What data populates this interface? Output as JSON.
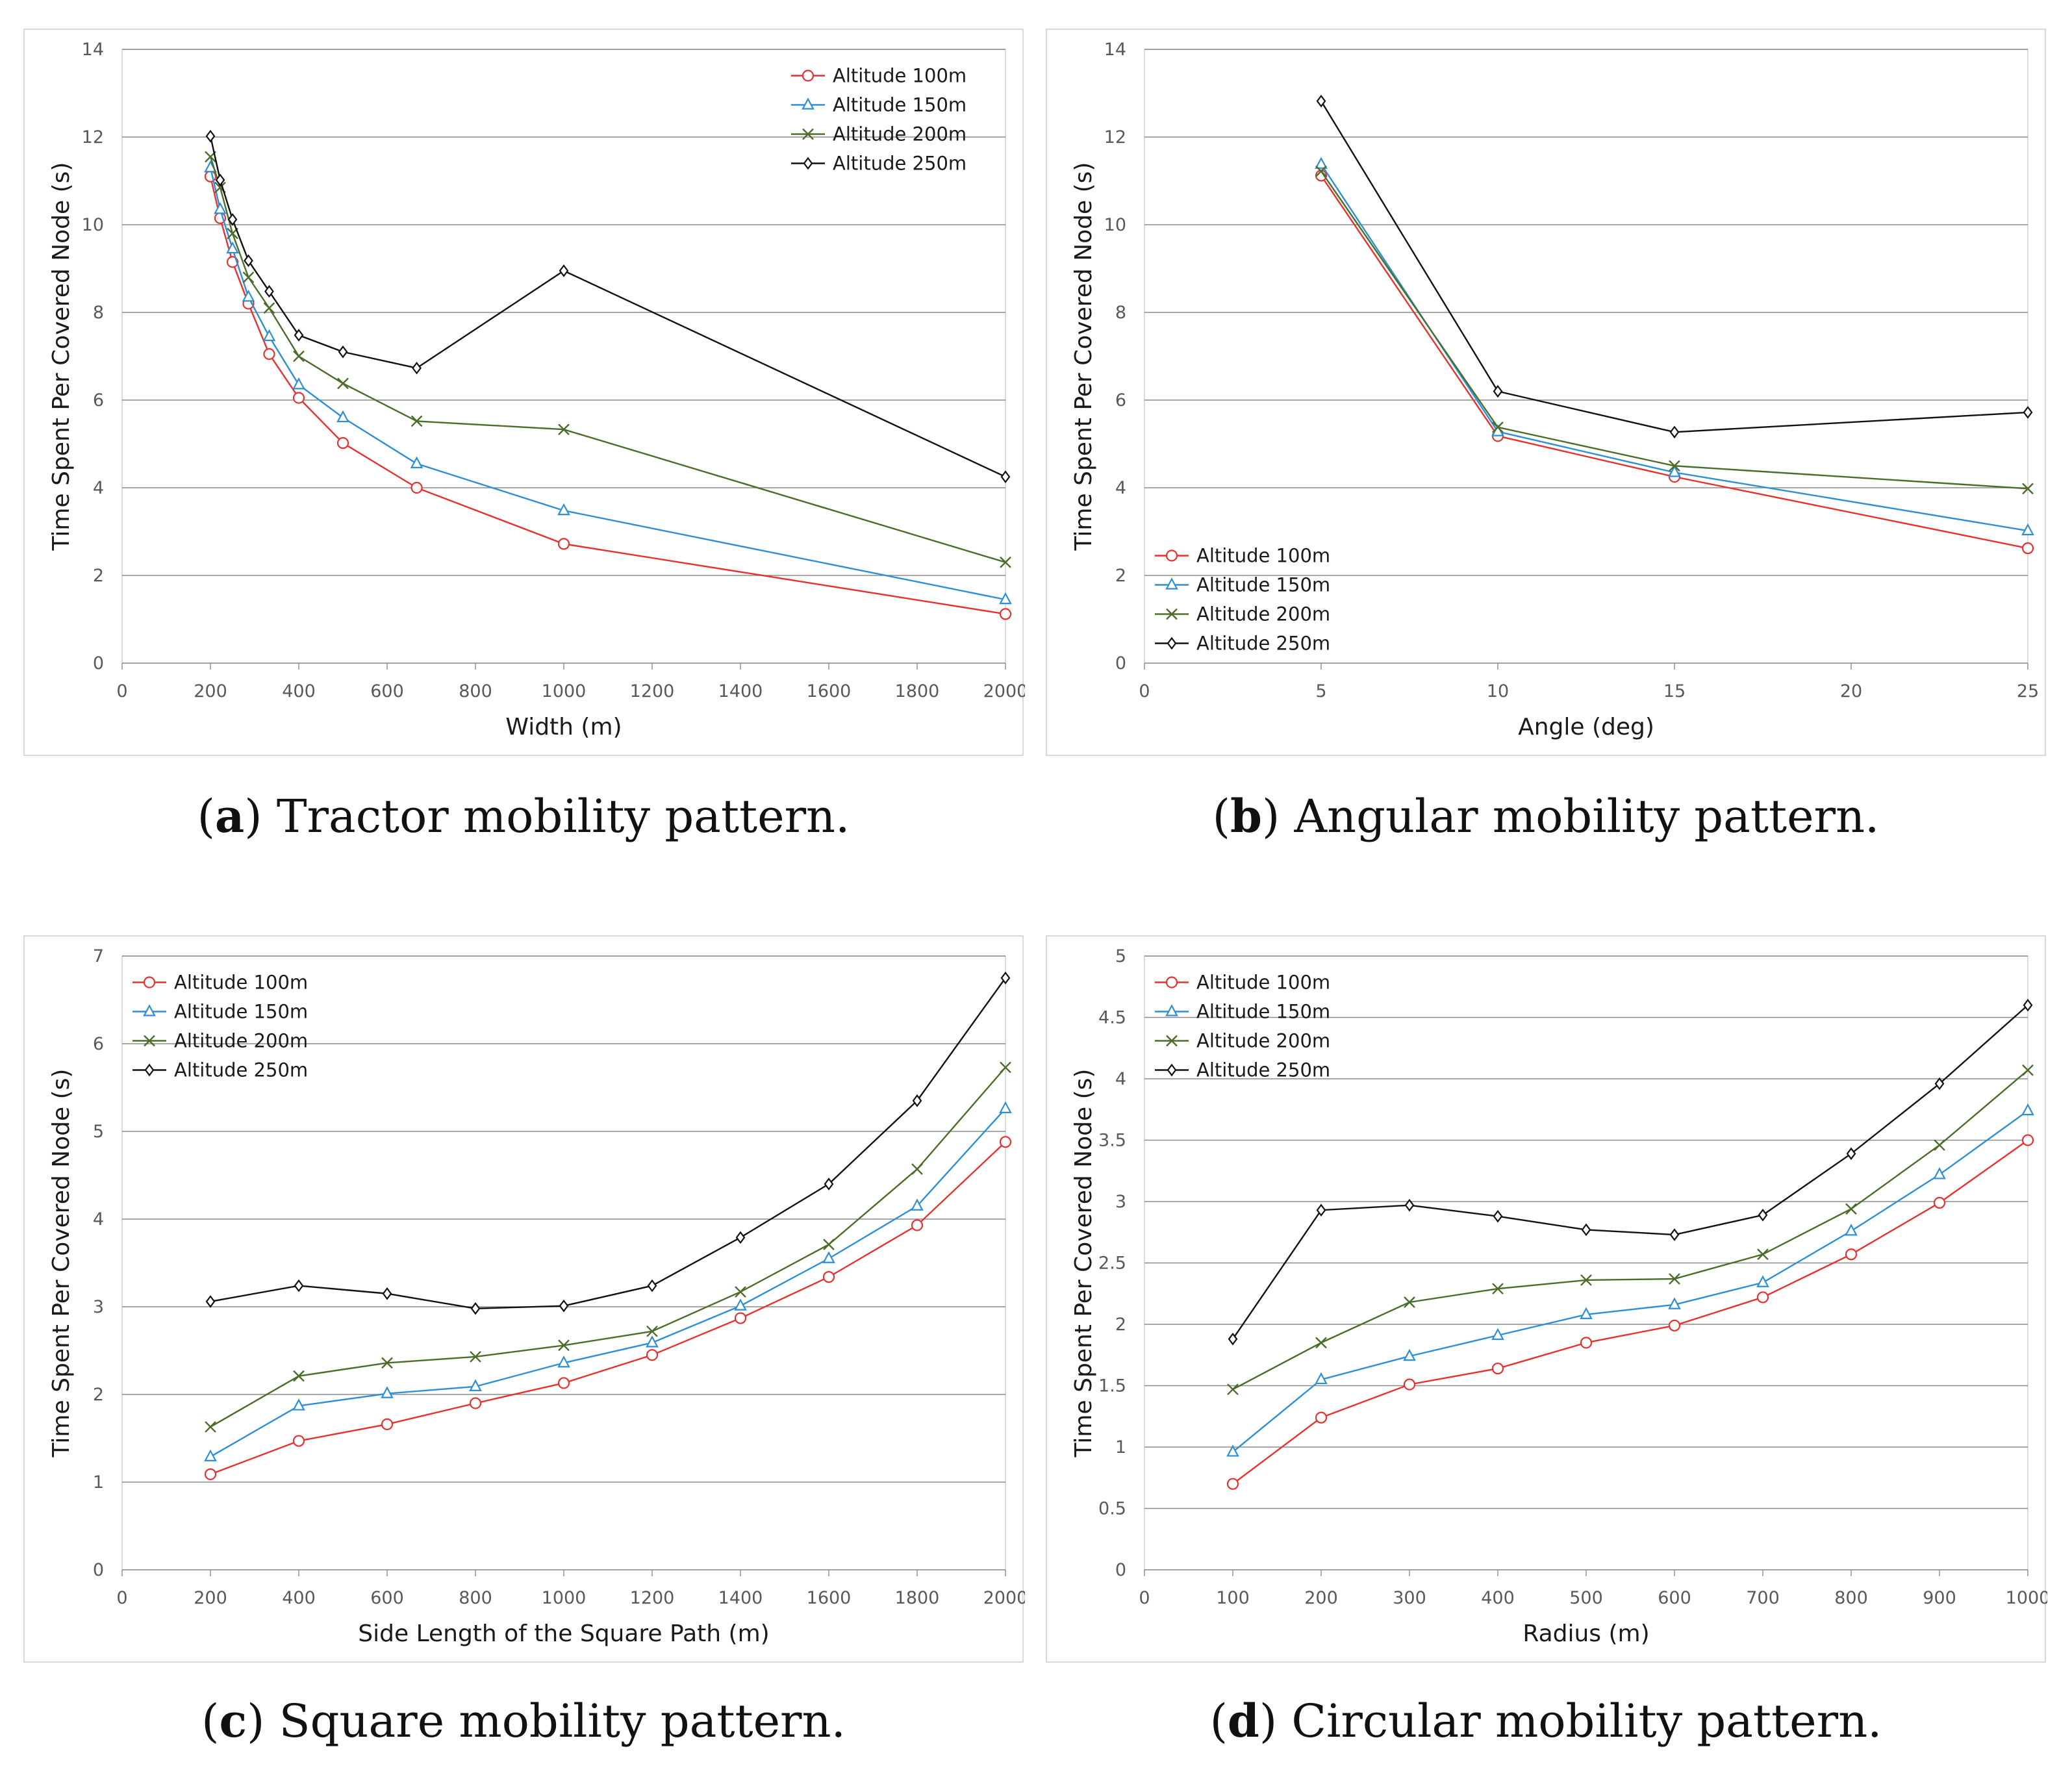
{
  "chart_data": [
    {
      "id": "a",
      "type": "line",
      "caption_letter": "a",
      "caption_text": " Tractor mobility pattern.",
      "xlabel": "Width (m)",
      "ylabel": "Time Spent Per Covered Node (s)",
      "xlim": [
        0,
        2000
      ],
      "ylim": [
        0,
        14
      ],
      "xticks": [
        0,
        200,
        400,
        600,
        800,
        1000,
        1200,
        1400,
        1600,
        1800,
        2000
      ],
      "yticks": [
        0,
        2,
        4,
        6,
        8,
        10,
        12,
        14
      ],
      "legend_position": "top-right",
      "grid": true,
      "series": [
        {
          "name": "Altitude 100m",
          "color": "#e8312f",
          "marker": "circle",
          "x": [
            200,
            222,
            250,
            286,
            333,
            400,
            500,
            667,
            1000,
            2000
          ],
          "y": [
            11.1,
            10.15,
            9.15,
            8.2,
            7.05,
            6.05,
            5.02,
            4.0,
            2.72,
            1.12
          ]
        },
        {
          "name": "Altitude 150m",
          "color": "#2d8fd5",
          "marker": "triangle",
          "x": [
            200,
            222,
            250,
            286,
            333,
            400,
            500,
            667,
            1000,
            2000
          ],
          "y": [
            11.3,
            10.35,
            9.45,
            8.35,
            7.45,
            6.35,
            5.6,
            4.55,
            3.48,
            1.45
          ]
        },
        {
          "name": "Altitude 200m",
          "color": "#4a6e2a",
          "marker": "x",
          "x": [
            200,
            222,
            250,
            286,
            333,
            400,
            500,
            667,
            1000,
            2000
          ],
          "y": [
            11.55,
            10.85,
            9.8,
            8.8,
            8.1,
            7.0,
            6.38,
            5.52,
            5.33,
            2.3
          ]
        },
        {
          "name": "Altitude 250m",
          "color": "#111111",
          "marker": "diamond",
          "x": [
            200,
            222,
            250,
            286,
            333,
            400,
            500,
            667,
            1000,
            2000
          ],
          "y": [
            12.02,
            11.02,
            10.12,
            9.18,
            8.48,
            7.48,
            7.1,
            6.73,
            8.95,
            4.25
          ]
        }
      ]
    },
    {
      "id": "b",
      "type": "line",
      "caption_letter": "b",
      "caption_text": " Angular mobility pattern.",
      "xlabel": "Angle (deg)",
      "ylabel": "Time Spent Per Covered Node (s)",
      "xlim": [
        0,
        25
      ],
      "ylim": [
        0,
        14
      ],
      "xticks": [
        0,
        5,
        10,
        15,
        20,
        25
      ],
      "yticks": [
        0,
        2,
        4,
        6,
        8,
        10,
        12,
        14
      ],
      "legend_position": "bottom-left",
      "grid": true,
      "series": [
        {
          "name": "Altitude 100m",
          "color": "#e8312f",
          "marker": "circle",
          "x": [
            5,
            10,
            15,
            25
          ],
          "y": [
            11.12,
            5.18,
            4.25,
            2.62
          ]
        },
        {
          "name": "Altitude 150m",
          "color": "#2d8fd5",
          "marker": "triangle",
          "x": [
            5,
            10,
            15,
            25
          ],
          "y": [
            11.38,
            5.28,
            4.35,
            3.02
          ]
        },
        {
          "name": "Altitude 200m",
          "color": "#4a6e2a",
          "marker": "x",
          "x": [
            5,
            10,
            15,
            25
          ],
          "y": [
            11.22,
            5.38,
            4.5,
            3.98
          ]
        },
        {
          "name": "Altitude 250m",
          "color": "#111111",
          "marker": "diamond",
          "x": [
            5,
            10,
            15,
            25
          ],
          "y": [
            12.82,
            6.2,
            5.27,
            5.72
          ]
        }
      ]
    },
    {
      "id": "c",
      "type": "line",
      "caption_letter": "c",
      "caption_text": " Square mobility pattern.",
      "xlabel": "Side Length of the Square Path (m)",
      "ylabel": "Time Spent Per Covered Node (s)",
      "xlim": [
        0,
        2000
      ],
      "ylim": [
        0,
        7
      ],
      "xticks": [
        0,
        200,
        400,
        600,
        800,
        1000,
        1200,
        1400,
        1600,
        1800,
        2000
      ],
      "yticks": [
        0,
        1,
        2,
        3,
        4,
        5,
        6,
        7
      ],
      "legend_position": "top-left",
      "grid": true,
      "series": [
        {
          "name": "Altitude 100m",
          "color": "#e8312f",
          "marker": "circle",
          "x": [
            200,
            400,
            600,
            800,
            1000,
            1200,
            1400,
            1600,
            1800,
            2000
          ],
          "y": [
            1.09,
            1.47,
            1.66,
            1.9,
            2.13,
            2.45,
            2.87,
            3.34,
            3.93,
            4.88
          ]
        },
        {
          "name": "Altitude 150m",
          "color": "#2d8fd5",
          "marker": "triangle",
          "x": [
            200,
            400,
            600,
            800,
            1000,
            1200,
            1400,
            1600,
            1800,
            2000
          ],
          "y": [
            1.29,
            1.87,
            2.01,
            2.09,
            2.36,
            2.59,
            3.01,
            3.55,
            4.15,
            5.26
          ]
        },
        {
          "name": "Altitude 200m",
          "color": "#4a6e2a",
          "marker": "x",
          "x": [
            200,
            400,
            600,
            800,
            1000,
            1200,
            1400,
            1600,
            1800,
            2000
          ],
          "y": [
            1.63,
            2.21,
            2.36,
            2.43,
            2.56,
            2.72,
            3.17,
            3.71,
            4.57,
            5.73
          ]
        },
        {
          "name": "Altitude 250m",
          "color": "#111111",
          "marker": "diamond",
          "x": [
            200,
            400,
            600,
            800,
            1000,
            1200,
            1400,
            1600,
            1800,
            2000
          ],
          "y": [
            3.06,
            3.24,
            3.15,
            2.98,
            3.01,
            3.24,
            3.79,
            4.4,
            5.35,
            6.75
          ]
        }
      ]
    },
    {
      "id": "d",
      "type": "line",
      "caption_letter": "d",
      "caption_text": " Circular mobility pattern.",
      "xlabel": "Radius (m)",
      "ylabel": "Time Spent Per Covered Node (s)",
      "xlim": [
        0,
        1000
      ],
      "ylim": [
        0,
        5
      ],
      "xticks": [
        0,
        100,
        200,
        300,
        400,
        500,
        600,
        700,
        800,
        900,
        1000
      ],
      "yticks": [
        0,
        0.5,
        1,
        1.5,
        2,
        2.5,
        3,
        3.5,
        4,
        4.5,
        5
      ],
      "legend_position": "top-left",
      "grid": true,
      "series": [
        {
          "name": "Altitude 100m",
          "color": "#e8312f",
          "marker": "circle",
          "x": [
            100,
            200,
            300,
            400,
            500,
            600,
            700,
            800,
            900,
            1000
          ],
          "y": [
            0.7,
            1.24,
            1.51,
            1.64,
            1.85,
            1.99,
            2.22,
            2.57,
            2.99,
            3.5
          ]
        },
        {
          "name": "Altitude 150m",
          "color": "#2d8fd5",
          "marker": "triangle",
          "x": [
            100,
            200,
            300,
            400,
            500,
            600,
            700,
            800,
            900,
            1000
          ],
          "y": [
            0.96,
            1.55,
            1.74,
            1.91,
            2.08,
            2.16,
            2.34,
            2.76,
            3.22,
            3.74
          ]
        },
        {
          "name": "Altitude 200m",
          "color": "#4a6e2a",
          "marker": "x",
          "x": [
            100,
            200,
            300,
            400,
            500,
            600,
            700,
            800,
            900,
            1000
          ],
          "y": [
            1.47,
            1.85,
            2.18,
            2.29,
            2.36,
            2.37,
            2.57,
            2.94,
            3.46,
            4.07
          ]
        },
        {
          "name": "Altitude 250m",
          "color": "#111111",
          "marker": "diamond",
          "x": [
            100,
            200,
            300,
            400,
            500,
            600,
            700,
            800,
            900,
            1000
          ],
          "y": [
            1.88,
            2.93,
            2.97,
            2.88,
            2.77,
            2.73,
            2.89,
            3.39,
            3.96,
            4.6
          ]
        }
      ]
    }
  ]
}
